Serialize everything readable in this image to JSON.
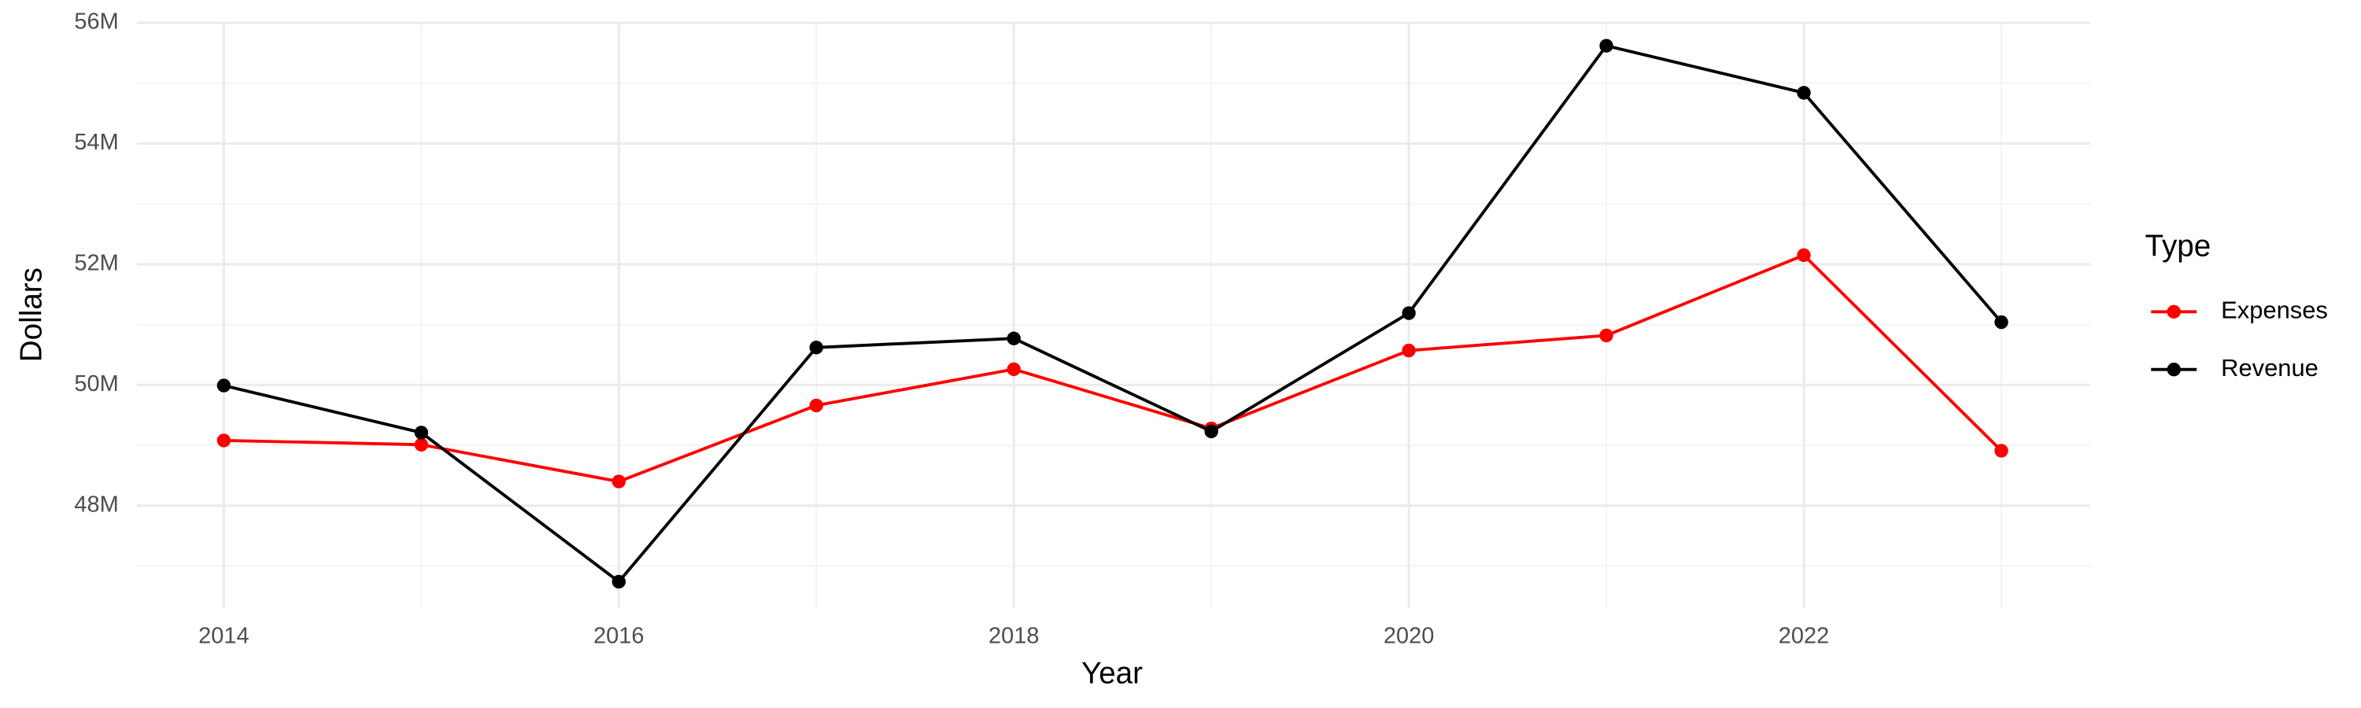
{
  "chart_data": {
    "type": "line",
    "x_label": "Year",
    "y_label": "Dollars",
    "legend_title": "Type",
    "x": [
      2014,
      2015,
      2016,
      2017,
      2018,
      2019,
      2020,
      2021,
      2022,
      2023
    ],
    "series": [
      {
        "name": "Expenses",
        "color": "#ff0000",
        "values": [
          49080000,
          49010000,
          48400000,
          49660000,
          50260000,
          49280000,
          50570000,
          50820000,
          52150000,
          48910000
        ]
      },
      {
        "name": "Revenue",
        "color": "#000000",
        "values": [
          49990000,
          49210000,
          46740000,
          50620000,
          50770000,
          49230000,
          51190000,
          55620000,
          54840000,
          51040000
        ]
      }
    ],
    "xlim": [
      2013.56,
      2023.45
    ],
    "xticks": [
      2014,
      2016,
      2018,
      2020,
      2022
    ],
    "ylim": [
      46300000,
      56000000
    ],
    "yticks": [
      {
        "value": 48000000,
        "label": "48M"
      },
      {
        "value": 50000000,
        "label": "50M"
      },
      {
        "value": 52000000,
        "label": "52M"
      },
      {
        "value": 54000000,
        "label": "54M"
      },
      {
        "value": 56000000,
        "label": "56M"
      }
    ],
    "grid": true,
    "legend": "right"
  }
}
